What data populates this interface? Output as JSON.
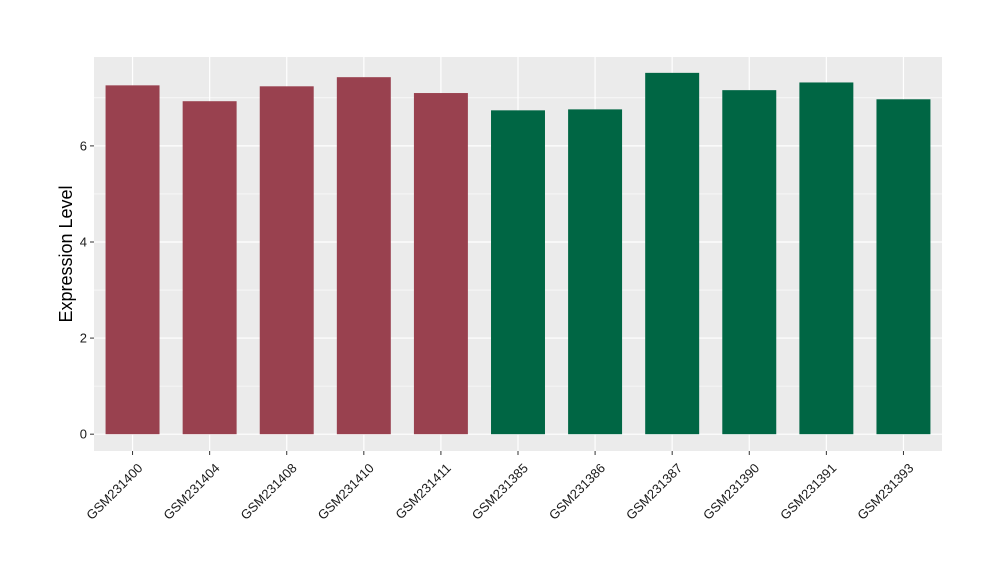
{
  "chart_data": {
    "type": "bar",
    "title": "",
    "xlabel": "",
    "ylabel": "Expression Level",
    "ylim": [
      -0.35,
      7.85
    ],
    "yticks": [
      0,
      2,
      4,
      6
    ],
    "grid": true,
    "legend": "none",
    "categories": [
      "GSM231400",
      "GSM231404",
      "GSM231408",
      "GSM231410",
      "GSM231411",
      "GSM231385",
      "GSM231386",
      "GSM231387",
      "GSM231390",
      "GSM231391",
      "GSM231393"
    ],
    "values": [
      7.26,
      6.93,
      7.24,
      7.43,
      7.1,
      6.74,
      6.76,
      7.52,
      7.16,
      7.32,
      6.97
    ],
    "groups": [
      0,
      0,
      0,
      0,
      0,
      1,
      1,
      1,
      1,
      1,
      1
    ],
    "group_colors": [
      "#99414f",
      "#006644"
    ],
    "panel_background": "#ebebeb",
    "grid_color": "#ffffff"
  }
}
